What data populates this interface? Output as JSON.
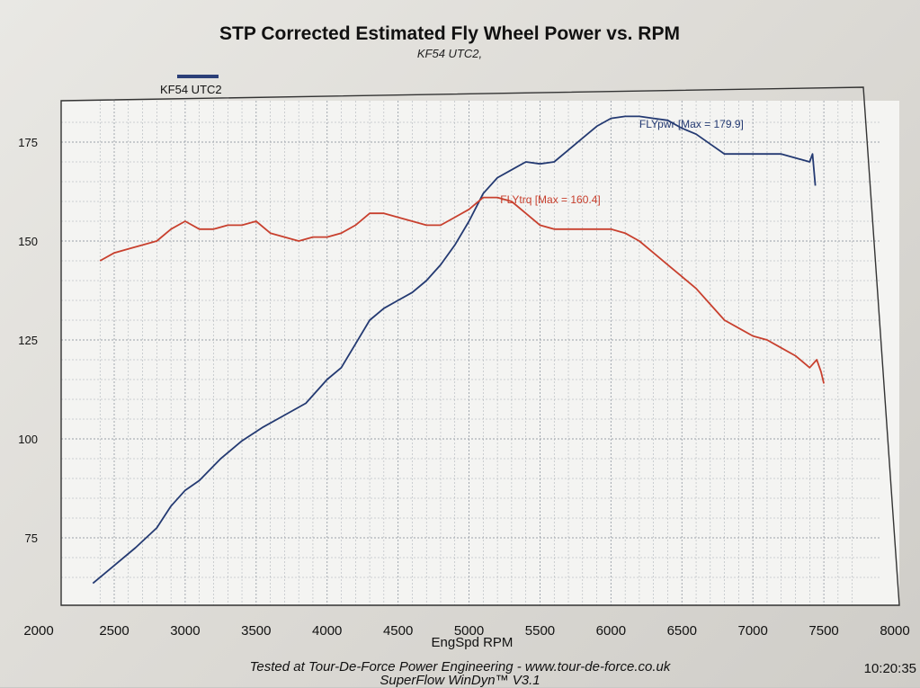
{
  "chart_data": {
    "type": "line",
    "title": "STP Corrected Estimated Fly Wheel Power vs. RPM",
    "subtitle": "KF54 UTC2,",
    "legend": {
      "label": "KF54 UTC2",
      "color": "#2b3f78",
      "placement": "top-left"
    },
    "xlabel": "EngSpd RPM",
    "ylabel": "",
    "xlim": [
      2000,
      8000
    ],
    "ylim": [
      63,
      181
    ],
    "x_ticks": [
      2000,
      2500,
      3000,
      3500,
      4000,
      4500,
      5000,
      5500,
      6000,
      6500,
      7000,
      7500,
      8000
    ],
    "y_ticks": [
      75,
      100,
      125,
      150,
      175
    ],
    "grid": true,
    "series": [
      {
        "name": "FLYpwr",
        "annotation": "FLYpwr [Max = 179.9]",
        "color": "#243a72",
        "x": [
          2350,
          2500,
          2650,
          2800,
          2900,
          3000,
          3100,
          3250,
          3400,
          3550,
          3700,
          3850,
          4000,
          4100,
          4200,
          4300,
          4400,
          4500,
          4600,
          4700,
          4800,
          4900,
          5000,
          5100,
          5200,
          5300,
          5400,
          5500,
          5600,
          5700,
          5800,
          5900,
          6000,
          6100,
          6200,
          6300,
          6400,
          6500,
          6600,
          6700,
          6800,
          6900,
          7000,
          7100,
          7200,
          7300,
          7400,
          7420,
          7440
        ],
        "y": [
          63.5,
          68,
          72.5,
          77.5,
          83,
          87,
          89.5,
          95,
          99.5,
          103,
          106,
          109,
          115,
          118,
          124,
          130,
          133,
          135,
          137,
          140,
          144,
          149,
          155,
          162,
          166,
          168,
          170,
          169.5,
          170,
          173,
          176,
          179,
          181,
          181.5,
          181.5,
          181,
          180.5,
          178.5,
          177,
          174.5,
          172,
          172,
          172,
          172,
          172,
          171,
          170,
          172,
          164
        ]
      },
      {
        "name": "FLYtrq",
        "annotation": "FLYtrq [Max = 160.4]",
        "color": "#c8402e",
        "x": [
          2400,
          2500,
          2600,
          2700,
          2800,
          2900,
          3000,
          3100,
          3200,
          3300,
          3400,
          3500,
          3600,
          3700,
          3800,
          3900,
          4000,
          4100,
          4200,
          4300,
          4400,
          4500,
          4600,
          4700,
          4800,
          4900,
          5000,
          5100,
          5200,
          5300,
          5400,
          5500,
          5600,
          5700,
          5800,
          5900,
          6000,
          6100,
          6200,
          6300,
          6400,
          6500,
          6600,
          6700,
          6800,
          6900,
          7000,
          7100,
          7200,
          7300,
          7400,
          7450,
          7480,
          7500
        ],
        "y": [
          145,
          147,
          148,
          149,
          150,
          153,
          155,
          153,
          153,
          154,
          154,
          155,
          152,
          151,
          150,
          151,
          151,
          152,
          154,
          157,
          157,
          156,
          155,
          154,
          154,
          156,
          158,
          161,
          161,
          160,
          157,
          154,
          153,
          153,
          153,
          153,
          153,
          152,
          150,
          147,
          144,
          141,
          138,
          134,
          130,
          128,
          126,
          125,
          123,
          121,
          118,
          120,
          117,
          114
        ]
      }
    ]
  },
  "footer": {
    "line1": "Tested at Tour-De-Force Power Engineering - www.tour-de-force.co.uk",
    "line2": "SuperFlow WinDyn™ V3.1",
    "time": "10:20:35"
  },
  "colors": {
    "grid": "#9aa0a8",
    "frame": "#333333",
    "plot_bg": "#f4f4f2"
  }
}
